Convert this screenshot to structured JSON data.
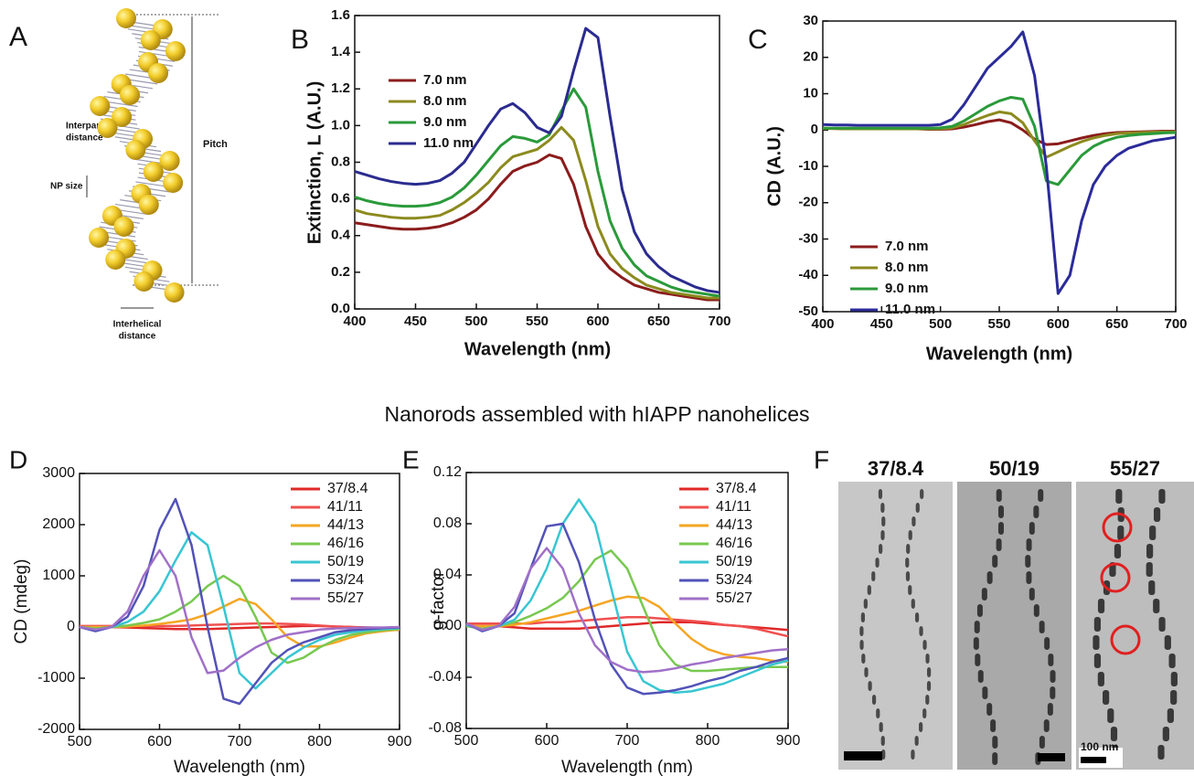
{
  "heading": "Nanorods assembled with hIAPP nanohelices",
  "panel_a": {
    "label": "A",
    "interparticle": [
      "Interparticle",
      "distance"
    ],
    "np_size": "NP size",
    "pitch": "Pitch",
    "interhelical": [
      "Interhelical",
      "distance"
    ]
  },
  "panel_f": {
    "label": "F",
    "images": [
      "37/8.4",
      "50/19",
      "55/27"
    ],
    "scale_bar": "100 nm"
  },
  "chart_data": [
    {
      "type": "line",
      "panel_label": "B",
      "xlabel": "Wavelength (nm)",
      "ylabel": "Extinction, L (A.U.)",
      "x": [
        400,
        410,
        420,
        430,
        440,
        450,
        460,
        470,
        480,
        490,
        500,
        510,
        520,
        530,
        540,
        550,
        560,
        570,
        580,
        590,
        600,
        610,
        620,
        630,
        640,
        650,
        660,
        670,
        680,
        690,
        700
      ],
      "xlim": [
        400,
        700
      ],
      "xticks": [
        400,
        450,
        500,
        550,
        600,
        650,
        700
      ],
      "ylim": [
        0,
        1.6
      ],
      "yticks": [
        {
          "value": 0,
          "label": "0.0"
        },
        0.2,
        0.4,
        0.6,
        0.8,
        {
          "value": 1,
          "label": "1.0"
        },
        1.2,
        1.4,
        1.6
      ],
      "series": [
        {
          "name": "7.0 nm",
          "color": "#8b1c1c",
          "values": [
            0.47,
            0.46,
            0.45,
            0.44,
            0.435,
            0.435,
            0.44,
            0.45,
            0.47,
            0.5,
            0.54,
            0.6,
            0.68,
            0.75,
            0.78,
            0.8,
            0.84,
            0.82,
            0.68,
            0.45,
            0.3,
            0.22,
            0.17,
            0.13,
            0.11,
            0.09,
            0.08,
            0.07,
            0.06,
            0.05,
            0.05
          ]
        },
        {
          "name": "8.0 nm",
          "color": "#8c8a1e",
          "values": [
            0.54,
            0.52,
            0.51,
            0.5,
            0.495,
            0.495,
            0.5,
            0.51,
            0.54,
            0.58,
            0.63,
            0.69,
            0.77,
            0.83,
            0.85,
            0.87,
            0.92,
            0.99,
            0.92,
            0.7,
            0.45,
            0.3,
            0.22,
            0.17,
            0.13,
            0.11,
            0.09,
            0.08,
            0.07,
            0.06,
            0.06
          ]
        },
        {
          "name": "9.0 nm",
          "color": "#2a9a3a",
          "values": [
            0.61,
            0.59,
            0.575,
            0.565,
            0.56,
            0.56,
            0.565,
            0.58,
            0.61,
            0.66,
            0.73,
            0.81,
            0.89,
            0.94,
            0.93,
            0.91,
            0.95,
            1.08,
            1.2,
            1.1,
            0.75,
            0.48,
            0.33,
            0.24,
            0.18,
            0.15,
            0.12,
            0.1,
            0.09,
            0.08,
            0.07
          ]
        },
        {
          "name": "11.0 nm",
          "color": "#2b2b8f",
          "values": [
            0.75,
            0.73,
            0.71,
            0.695,
            0.685,
            0.68,
            0.685,
            0.7,
            0.74,
            0.8,
            0.9,
            1.0,
            1.09,
            1.12,
            1.07,
            0.99,
            0.96,
            1.05,
            1.3,
            1.53,
            1.48,
            1.05,
            0.65,
            0.42,
            0.3,
            0.23,
            0.18,
            0.15,
            0.12,
            0.1,
            0.09
          ]
        }
      ]
    },
    {
      "type": "line",
      "panel_label": "C",
      "xlabel": "Wavelength (nm)",
      "ylabel": "CD (A.U.)",
      "x": [
        400,
        410,
        420,
        430,
        440,
        450,
        460,
        470,
        480,
        490,
        500,
        510,
        520,
        530,
        540,
        550,
        560,
        570,
        580,
        590,
        600,
        610,
        620,
        630,
        640,
        650,
        660,
        670,
        680,
        690,
        700
      ],
      "xlim": [
        400,
        700
      ],
      "xticks": [
        400,
        450,
        500,
        550,
        600,
        650,
        700
      ],
      "ylim": [
        -50,
        30
      ],
      "yticks": [
        -50,
        -40,
        -30,
        -20,
        -10,
        0,
        10,
        20,
        30
      ],
      "series": [
        {
          "name": "7.0 nm",
          "color": "#8b1c1c",
          "values": [
            0.5,
            0.4,
            0.3,
            0.3,
            0.3,
            0.3,
            0.3,
            0.3,
            0.3,
            0.2,
            0.2,
            0.3,
            0.8,
            1.5,
            2.3,
            2.8,
            2,
            0,
            -2.5,
            -4,
            -3.8,
            -3,
            -2.2,
            -1.5,
            -1,
            -0.7,
            -0.6,
            -0.5,
            -0.4,
            -0.3,
            -0.3
          ]
        },
        {
          "name": "8.0 nm",
          "color": "#8c8a1e",
          "values": [
            0.4,
            0.4,
            0.3,
            0.3,
            0.3,
            0.3,
            0.3,
            0.3,
            0.3,
            0.3,
            0.3,
            0.6,
            1.5,
            2.8,
            4,
            5,
            4.5,
            2,
            -3,
            -7.5,
            -6,
            -4.5,
            -3.2,
            -2.2,
            -1.5,
            -1,
            -0.8,
            -0.7,
            -0.6,
            -0.5,
            -0.5
          ]
        },
        {
          "name": "9.0 nm",
          "color": "#2a9a3a",
          "values": [
            0.5,
            0.5,
            0.5,
            0.5,
            0.5,
            0.5,
            0.5,
            0.5,
            0.5,
            0.5,
            0.6,
            1,
            2.5,
            4.5,
            6.5,
            8,
            9,
            8.5,
            1,
            -14,
            -15,
            -11,
            -7,
            -4.5,
            -3,
            -2,
            -1.5,
            -1.2,
            -1,
            -0.8,
            -0.7
          ]
        },
        {
          "name": "11.0 nm",
          "color": "#2b2b9a",
          "values": [
            1.5,
            1.4,
            1.4,
            1.3,
            1.3,
            1.3,
            1.3,
            1.3,
            1.3,
            1.3,
            1.5,
            3,
            7,
            12,
            17,
            20,
            23,
            27,
            15,
            -10,
            -45,
            -40,
            -25,
            -15,
            -10,
            -7,
            -5,
            -4,
            -3,
            -2.5,
            -2
          ]
        }
      ]
    },
    {
      "type": "line",
      "panel_label": "D",
      "xlabel": "Wavelength (nm)",
      "ylabel": "CD (mdeg)",
      "x": [
        500,
        520,
        540,
        560,
        580,
        600,
        620,
        640,
        660,
        680,
        700,
        720,
        740,
        760,
        780,
        800,
        820,
        840,
        860,
        880,
        900
      ],
      "xlim": [
        500,
        900
      ],
      "xticks": [
        500,
        600,
        700,
        800,
        900
      ],
      "ylim": [
        -2000,
        3000
      ],
      "yticks": [
        -2000,
        -1000,
        0,
        1000,
        2000,
        3000
      ],
      "series": [
        {
          "name": "37/8.4",
          "color": "#e02828",
          "values": [
            0,
            0,
            0,
            -10,
            -20,
            -30,
            -40,
            -40,
            -40,
            -30,
            -20,
            -10,
            0,
            10,
            20,
            20,
            10,
            0,
            -10,
            -20,
            -30
          ]
        },
        {
          "name": "41/11",
          "color": "#f05050",
          "values": [
            20,
            20,
            20,
            20,
            20,
            20,
            20,
            30,
            40,
            50,
            60,
            70,
            70,
            60,
            50,
            30,
            10,
            0,
            -20,
            -40,
            -60
          ]
        },
        {
          "name": "44/13",
          "color": "#f5a623",
          "values": [
            0,
            0,
            0,
            10,
            30,
            60,
            100,
            150,
            250,
            400,
            550,
            450,
            150,
            -200,
            -380,
            -380,
            -300,
            -200,
            -120,
            -80,
            -50
          ]
        },
        {
          "name": "46/16",
          "color": "#78c850",
          "values": [
            0,
            -30,
            0,
            30,
            80,
            150,
            300,
            500,
            800,
            1000,
            800,
            200,
            -500,
            -700,
            -600,
            -400,
            -250,
            -150,
            -100,
            -60,
            -40
          ]
        },
        {
          "name": "50/19",
          "color": "#38c6d2",
          "values": [
            0,
            -60,
            0,
            100,
            300,
            700,
            1300,
            1850,
            1600,
            400,
            -900,
            -1200,
            -900,
            -600,
            -400,
            -250,
            -150,
            -100,
            -60,
            -40,
            -20
          ]
        },
        {
          "name": "53/24",
          "color": "#5252b8",
          "values": [
            0,
            -80,
            0,
            200,
            800,
            1900,
            2500,
            1600,
            0,
            -1400,
            -1500,
            -1100,
            -700,
            -450,
            -300,
            -200,
            -100,
            -60,
            -40,
            -20,
            -10
          ]
        },
        {
          "name": "55/27",
          "color": "#a070c8",
          "values": [
            0,
            -50,
            0,
            300,
            1000,
            1500,
            1000,
            -200,
            -900,
            -850,
            -600,
            -400,
            -250,
            -150,
            -100,
            -50,
            -30,
            -20,
            -10,
            -10,
            0
          ]
        }
      ]
    },
    {
      "type": "line",
      "panel_label": "E",
      "xlabel": "Wavelength (nm)",
      "ylabel": "g-factor",
      "x": [
        500,
        520,
        540,
        560,
        580,
        600,
        620,
        640,
        660,
        680,
        700,
        720,
        740,
        760,
        780,
        800,
        820,
        840,
        860,
        880,
        900
      ],
      "xlim": [
        500,
        900
      ],
      "xticks": [
        500,
        600,
        700,
        800,
        900
      ],
      "ylim": [
        -0.08,
        0.12
      ],
      "yticks": [
        -0.08,
        -0.04,
        {
          "value": 0,
          "label": "0.00"
        },
        0.04,
        0.08,
        0.12
      ],
      "series": [
        {
          "name": "37/8.4",
          "color": "#e02828",
          "values": [
            0,
            0,
            0,
            -0.001,
            -0.002,
            -0.002,
            -0.002,
            -0.002,
            -0.001,
            0,
            0.001,
            0.002,
            0.003,
            0.003,
            0.003,
            0.002,
            0.001,
            0,
            -0.001,
            -0.002,
            -0.003
          ]
        },
        {
          "name": "41/11",
          "color": "#f05050",
          "values": [
            0.002,
            0.002,
            0.002,
            0.002,
            0.002,
            0.003,
            0.003,
            0.004,
            0.005,
            0.006,
            0.007,
            0.007,
            0.006,
            0.005,
            0.004,
            0.003,
            0.001,
            0,
            -0.002,
            -0.005,
            -0.008
          ]
        },
        {
          "name": "44/13",
          "color": "#f5a623",
          "values": [
            0,
            0,
            0,
            0.001,
            0.003,
            0.006,
            0.009,
            0.012,
            0.016,
            0.02,
            0.023,
            0.022,
            0.015,
            0.002,
            -0.01,
            -0.018,
            -0.022,
            -0.024,
            -0.025,
            -0.027,
            -0.028
          ]
        },
        {
          "name": "46/16",
          "color": "#78c850",
          "values": [
            0,
            -0.002,
            0,
            0.003,
            0.008,
            0.014,
            0.022,
            0.035,
            0.052,
            0.059,
            0.045,
            0.015,
            -0.015,
            -0.03,
            -0.035,
            -0.035,
            -0.034,
            -0.033,
            -0.032,
            -0.032,
            -0.032
          ]
        },
        {
          "name": "50/19",
          "color": "#38c6d2",
          "values": [
            0.001,
            -0.003,
            0,
            0.005,
            0.02,
            0.045,
            0.08,
            0.099,
            0.08,
            0.03,
            -0.02,
            -0.043,
            -0.05,
            -0.052,
            -0.051,
            -0.048,
            -0.045,
            -0.04,
            -0.035,
            -0.03,
            -0.027
          ]
        },
        {
          "name": "53/24",
          "color": "#5252b8",
          "values": [
            0.002,
            -0.004,
            0,
            0.01,
            0.045,
            0.078,
            0.08,
            0.05,
            0.005,
            -0.03,
            -0.048,
            -0.053,
            -0.052,
            -0.05,
            -0.047,
            -0.043,
            -0.04,
            -0.035,
            -0.032,
            -0.028,
            -0.025
          ]
        },
        {
          "name": "55/27",
          "color": "#a070c8",
          "values": [
            0.002,
            -0.003,
            0,
            0.015,
            0.045,
            0.061,
            0.045,
            0.01,
            -0.015,
            -0.028,
            -0.034,
            -0.036,
            -0.035,
            -0.033,
            -0.03,
            -0.028,
            -0.025,
            -0.023,
            -0.021,
            -0.019,
            -0.018
          ]
        }
      ]
    }
  ]
}
